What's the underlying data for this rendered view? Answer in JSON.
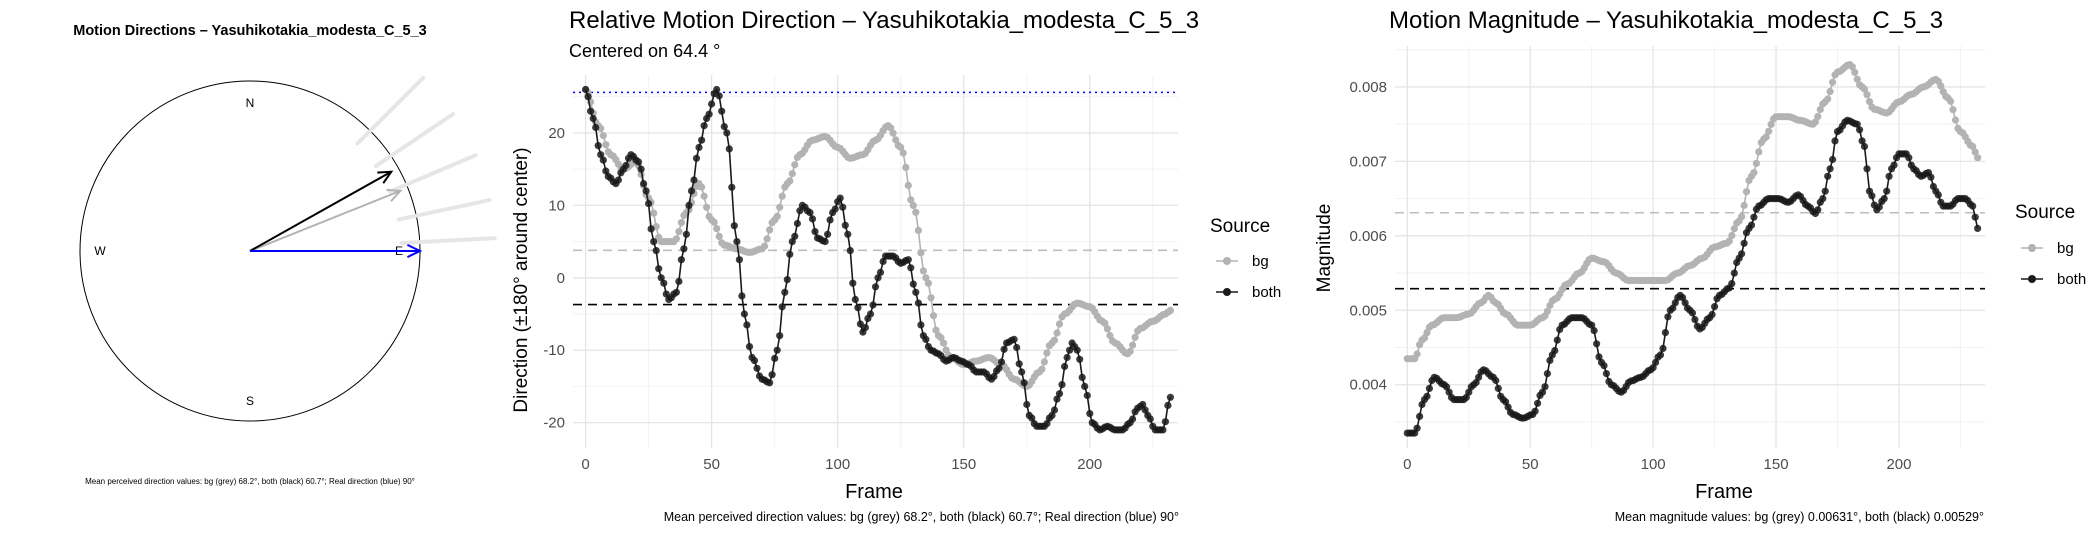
{
  "colors": {
    "bg": "#b3b3b3",
    "both": "#1a1a1a",
    "real": "#0000ff",
    "grid_major": "#e5e5e5",
    "grid_minor": "#f2f2f2"
  },
  "compass_panel": {
    "title": "Motion Directions – Yasuhikotakia_modesta_C_5_3",
    "labels": {
      "n": "N",
      "s": "S",
      "e": "E",
      "w": "W"
    },
    "caption": "Mean perceived direction values: bg (grey) 68.2°, both (black) 60.7°; Real direction (blue) 90°"
  },
  "direction_panel": {
    "title": "Relative Motion Direction – Yasuhikotakia_modesta_C_5_3",
    "subtitle": "Centered on  64.4 °",
    "xlabel": "Frame",
    "ylabel": "Direction (±180° around center)",
    "legend_title": "Source",
    "legend_bg": "bg",
    "legend_both": "both",
    "caption": "Mean perceived direction values: bg (grey) 68.2°, both (black) 60.7°; Real direction (blue) 90°",
    "xticks": [
      "0",
      "50",
      "100",
      "150",
      "200"
    ],
    "yticks": [
      "-20",
      "-10",
      "0",
      "10",
      "20"
    ]
  },
  "magnitude_panel": {
    "title": "Motion Magnitude – Yasuhikotakia_modesta_C_5_3",
    "xlabel": "Frame",
    "ylabel": "Magnitude",
    "legend_title": "Source",
    "legend_bg": "bg",
    "legend_both": "both",
    "caption": "Mean magnitude values: bg (grey) 0.00631°, both (black) 0.00529°",
    "xticks": [
      "0",
      "50",
      "100",
      "150",
      "200"
    ],
    "yticks": [
      "0.004",
      "0.005",
      "0.006",
      "0.007",
      "0.008"
    ]
  },
  "chart_data": [
    {
      "type": "compass",
      "arrows": [
        {
          "name": "bg",
          "angle_deg": 68.2
        },
        {
          "name": "both",
          "angle_deg": 60.7
        },
        {
          "name": "Real direction",
          "angle_deg": 90
        }
      ],
      "faint_rays_deg": [
        45,
        56,
        67,
        78,
        87
      ],
      "legend": []
    },
    {
      "type": "line",
      "xlim": [
        -5,
        235
      ],
      "ylim": [
        -23.5,
        28
      ],
      "reference_lines": {
        "real": 25.6,
        "bg_mean": 3.8,
        "both_mean": -3.7
      },
      "series": [
        {
          "name": "bg",
          "knots": [
            [
              0,
              26
            ],
            [
              5,
              21
            ],
            [
              10,
              17
            ],
            [
              15,
              15
            ],
            [
              20,
              16
            ],
            [
              25,
              11
            ],
            [
              30,
              5
            ],
            [
              35,
              5
            ],
            [
              40,
              9
            ],
            [
              45,
              13
            ],
            [
              50,
              8
            ],
            [
              55,
              4.5
            ],
            [
              60,
              4
            ],
            [
              65,
              3.5
            ],
            [
              70,
              4
            ],
            [
              75,
              8
            ],
            [
              80,
              13
            ],
            [
              85,
              17
            ],
            [
              90,
              19
            ],
            [
              95,
              19.5
            ],
            [
              100,
              18
            ],
            [
              105,
              16.5
            ],
            [
              110,
              17
            ],
            [
              115,
              19
            ],
            [
              120,
              21
            ],
            [
              125,
              18
            ],
            [
              130,
              10
            ],
            [
              135,
              0
            ],
            [
              140,
              -8
            ],
            [
              145,
              -11
            ],
            [
              150,
              -12
            ],
            [
              155,
              -11.5
            ],
            [
              160,
              -11
            ],
            [
              165,
              -12
            ],
            [
              170,
              -14
            ],
            [
              175,
              -15
            ],
            [
              180,
              -13
            ],
            [
              185,
              -9
            ],
            [
              190,
              -5
            ],
            [
              195,
              -3.5
            ],
            [
              200,
              -4
            ],
            [
              205,
              -6
            ],
            [
              210,
              -9
            ],
            [
              215,
              -10.5
            ],
            [
              220,
              -7
            ],
            [
              225,
              -6
            ],
            [
              230,
              -5
            ],
            [
              232,
              -4.5
            ]
          ]
        },
        {
          "name": "both",
          "knots": [
            [
              0,
              26
            ],
            [
              3,
              22
            ],
            [
              6,
              17
            ],
            [
              9,
              14
            ],
            [
              12,
              13
            ],
            [
              15,
              15
            ],
            [
              18,
              17
            ],
            [
              21,
              16
            ],
            [
              24,
              12
            ],
            [
              27,
              5
            ],
            [
              30,
              0
            ],
            [
              33,
              -3
            ],
            [
              36,
              -2
            ],
            [
              39,
              4
            ],
            [
              42,
              12
            ],
            [
              45,
              18
            ],
            [
              48,
              22
            ],
            [
              52,
              26
            ],
            [
              56,
              20
            ],
            [
              60,
              5
            ],
            [
              63,
              -5
            ],
            [
              66,
              -11
            ],
            [
              70,
              -14
            ],
            [
              73,
              -14.5
            ],
            [
              76,
              -10
            ],
            [
              79,
              -2
            ],
            [
              82,
              5
            ],
            [
              86,
              10
            ],
            [
              89,
              9
            ],
            [
              92,
              5.5
            ],
            [
              95,
              5
            ],
            [
              98,
              9
            ],
            [
              101,
              11
            ],
            [
              104,
              6
            ],
            [
              107,
              -3
            ],
            [
              110,
              -7.5
            ],
            [
              113,
              -5
            ],
            [
              116,
              0
            ],
            [
              119,
              3
            ],
            [
              122,
              3
            ],
            [
              125,
              2
            ],
            [
              128,
              2.5
            ],
            [
              131,
              -2
            ],
            [
              134,
              -8
            ],
            [
              137,
              -10
            ],
            [
              140,
              -10.5
            ],
            [
              143,
              -11.5
            ],
            [
              146,
              -11
            ],
            [
              149,
              -11.5
            ],
            [
              152,
              -12
            ],
            [
              155,
              -13
            ],
            [
              158,
              -13
            ],
            [
              161,
              -14
            ],
            [
              164,
              -12.5
            ],
            [
              167,
              -9
            ],
            [
              170,
              -8.5
            ],
            [
              173,
              -13
            ],
            [
              176,
              -19
            ],
            [
              179,
              -20.5
            ],
            [
              182,
              -20.5
            ],
            [
              185,
              -19
            ],
            [
              188,
              -16
            ],
            [
              191,
              -11
            ],
            [
              193,
              -9
            ],
            [
              195,
              -10
            ],
            [
              198,
              -15
            ],
            [
              201,
              -20
            ],
            [
              204,
              -21
            ],
            [
              207,
              -20.5
            ],
            [
              210,
              -21
            ],
            [
              213,
              -21
            ],
            [
              216,
              -20
            ],
            [
              219,
              -18
            ],
            [
              221,
              -17.5
            ],
            [
              223,
              -19
            ],
            [
              226,
              -21
            ],
            [
              229,
              -21
            ],
            [
              232,
              -16.5
            ]
          ]
        }
      ]
    },
    {
      "type": "line",
      "xlim": [
        -5,
        235
      ],
      "ylim": [
        0.00315,
        0.00855
      ],
      "reference_lines": {
        "bg_mean": 0.00631,
        "both_mean": 0.00529
      },
      "series": [
        {
          "name": "bg",
          "knots": [
            [
              0,
              0.00435
            ],
            [
              3,
              0.00435
            ],
            [
              6,
              0.0046
            ],
            [
              10,
              0.0048
            ],
            [
              15,
              0.0049
            ],
            [
              20,
              0.0049
            ],
            [
              25,
              0.00495
            ],
            [
              30,
              0.0051
            ],
            [
              33,
              0.0052
            ],
            [
              36,
              0.0051
            ],
            [
              40,
              0.00495
            ],
            [
              45,
              0.0048
            ],
            [
              50,
              0.0048
            ],
            [
              55,
              0.0049
            ],
            [
              60,
              0.00515
            ],
            [
              65,
              0.00535
            ],
            [
              70,
              0.0055
            ],
            [
              75,
              0.0057
            ],
            [
              80,
              0.00565
            ],
            [
              85,
              0.0055
            ],
            [
              90,
              0.0054
            ],
            [
              95,
              0.0054
            ],
            [
              100,
              0.0054
            ],
            [
              105,
              0.0054
            ],
            [
              110,
              0.0055
            ],
            [
              115,
              0.0056
            ],
            [
              120,
              0.0057
            ],
            [
              125,
              0.00585
            ],
            [
              130,
              0.0059
            ],
            [
              135,
              0.0062
            ],
            [
              140,
              0.0068
            ],
            [
              145,
              0.0073
            ],
            [
              150,
              0.0076
            ],
            [
              155,
              0.0076
            ],
            [
              160,
              0.00755
            ],
            [
              165,
              0.0075
            ],
            [
              170,
              0.0078
            ],
            [
              175,
              0.0082
            ],
            [
              180,
              0.0083
            ],
            [
              185,
              0.008
            ],
            [
              190,
              0.0077
            ],
            [
              195,
              0.00765
            ],
            [
              200,
              0.0078
            ],
            [
              205,
              0.0079
            ],
            [
              210,
              0.008
            ],
            [
              215,
              0.0081
            ],
            [
              220,
              0.00785
            ],
            [
              225,
              0.0074
            ],
            [
              230,
              0.0072
            ],
            [
              232,
              0.00705
            ]
          ]
        },
        {
          "name": "both",
          "knots": [
            [
              0,
              0.00335
            ],
            [
              3,
              0.00335
            ],
            [
              7,
              0.0038
            ],
            [
              11,
              0.0041
            ],
            [
              15,
              0.004
            ],
            [
              19,
              0.0038
            ],
            [
              23,
              0.0038
            ],
            [
              27,
              0.004
            ],
            [
              31,
              0.0042
            ],
            [
              35,
              0.0041
            ],
            [
              39,
              0.0038
            ],
            [
              43,
              0.0036
            ],
            [
              47,
              0.00355
            ],
            [
              51,
              0.0036
            ],
            [
              55,
              0.0039
            ],
            [
              59,
              0.0044
            ],
            [
              63,
              0.0048
            ],
            [
              67,
              0.0049
            ],
            [
              71,
              0.0049
            ],
            [
              75,
              0.0048
            ],
            [
              79,
              0.0043
            ],
            [
              83,
              0.004
            ],
            [
              87,
              0.0039
            ],
            [
              91,
              0.00405
            ],
            [
              95,
              0.0041
            ],
            [
              99,
              0.0042
            ],
            [
              103,
              0.0044
            ],
            [
              107,
              0.005
            ],
            [
              111,
              0.0052
            ],
            [
              115,
              0.005
            ],
            [
              119,
              0.00475
            ],
            [
              123,
              0.0049
            ],
            [
              127,
              0.0052
            ],
            [
              131,
              0.0053
            ],
            [
              135,
              0.0057
            ],
            [
              139,
              0.0061
            ],
            [
              143,
              0.0064
            ],
            [
              147,
              0.0065
            ],
            [
              151,
              0.0065
            ],
            [
              155,
              0.00645
            ],
            [
              159,
              0.00655
            ],
            [
              163,
              0.0064
            ],
            [
              166,
              0.0063
            ],
            [
              169,
              0.0065
            ],
            [
              172,
              0.0069
            ],
            [
              175,
              0.0074
            ],
            [
              179,
              0.00755
            ],
            [
              183,
              0.0075
            ],
            [
              186,
              0.0072
            ],
            [
              188,
              0.0066
            ],
            [
              191,
              0.00635
            ],
            [
              194,
              0.0065
            ],
            [
              197,
              0.0069
            ],
            [
              200,
              0.0071
            ],
            [
              203,
              0.0071
            ],
            [
              206,
              0.0069
            ],
            [
              209,
              0.0068
            ],
            [
              212,
              0.00685
            ],
            [
              215,
              0.0066
            ],
            [
              218,
              0.0064
            ],
            [
              221,
              0.0064
            ],
            [
              224,
              0.0065
            ],
            [
              227,
              0.0065
            ],
            [
              230,
              0.0064
            ],
            [
              232,
              0.0061
            ]
          ]
        }
      ]
    }
  ]
}
